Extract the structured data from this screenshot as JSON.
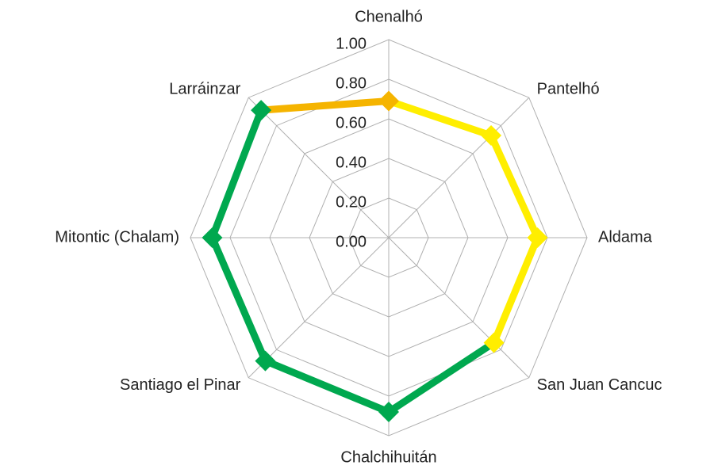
{
  "chart_data": {
    "type": "radar",
    "categories": [
      "Chenalhó",
      "Pantelhó",
      "Aldama",
      "San Juan Cancuc",
      "Chalchihuitán",
      "Santiago el Pinar",
      "Mitontic (Chalam)",
      "Larráinzar"
    ],
    "values": [
      0.69,
      0.73,
      0.75,
      0.75,
      0.88,
      0.88,
      0.89,
      0.91
    ],
    "colors": [
      "#f5b400",
      "#ffee00",
      "#ffee00",
      "#ffee00",
      "#00a84f",
      "#00a84f",
      "#00a84f",
      "#00a84f"
    ],
    "ylim": [
      0,
      1
    ],
    "yticks": [
      {
        "value": 0,
        "label": "0.00"
      },
      {
        "value": 0.2,
        "label": "0.20"
      },
      {
        "value": 0.4,
        "label": "0.40"
      },
      {
        "value": 0.6,
        "label": "0.60"
      },
      {
        "value": 0.8,
        "label": "0.80"
      },
      {
        "value": 1,
        "label": "1.00"
      }
    ],
    "grid": true
  }
}
